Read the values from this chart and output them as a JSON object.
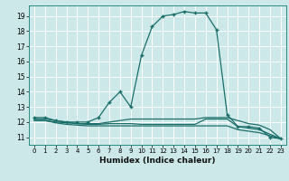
{
  "xlabel": "Humidex (Indice chaleur)",
  "bg_color": "#cce8e8",
  "grid_color": "#b0d4d4",
  "line_color": "#1a6e6a",
  "xlim": [
    -0.5,
    23.5
  ],
  "ylim": [
    10.5,
    19.7
  ],
  "xticks": [
    0,
    1,
    2,
    3,
    4,
    5,
    6,
    7,
    8,
    9,
    10,
    11,
    12,
    13,
    14,
    15,
    16,
    17,
    18,
    19,
    20,
    21,
    22,
    23
  ],
  "yticks": [
    11,
    12,
    13,
    14,
    15,
    16,
    17,
    18,
    19
  ],
  "main_x": [
    0,
    1,
    2,
    3,
    4,
    5,
    6,
    7,
    8,
    9,
    10,
    11,
    12,
    13,
    14,
    15,
    16,
    17,
    18,
    19,
    20,
    21,
    22,
    23
  ],
  "main_y": [
    12.3,
    12.3,
    12.1,
    12.0,
    12.0,
    12.0,
    12.3,
    13.3,
    14.0,
    13.0,
    16.4,
    18.3,
    19.0,
    19.1,
    19.3,
    19.2,
    19.2,
    18.1,
    12.5,
    11.7,
    11.7,
    11.6,
    11.0,
    10.9
  ],
  "line2_x": [
    0,
    1,
    2,
    3,
    4,
    5,
    6,
    7,
    8,
    9,
    10,
    11,
    12,
    13,
    14,
    15,
    16,
    17,
    18,
    19,
    20,
    21,
    22,
    23
  ],
  "line2_y": [
    12.1,
    12.1,
    12.0,
    11.95,
    11.9,
    11.85,
    11.85,
    11.9,
    11.9,
    11.9,
    11.85,
    11.85,
    11.85,
    11.85,
    11.85,
    11.85,
    12.2,
    12.2,
    12.2,
    11.7,
    11.6,
    11.5,
    11.2,
    10.9
  ],
  "line3_x": [
    0,
    1,
    2,
    3,
    4,
    5,
    6,
    7,
    8,
    9,
    10,
    11,
    12,
    13,
    14,
    15,
    16,
    17,
    18,
    19,
    20,
    21,
    22,
    23
  ],
  "line3_y": [
    12.1,
    12.1,
    11.95,
    11.85,
    11.8,
    11.75,
    11.75,
    11.75,
    11.75,
    11.75,
    11.75,
    11.75,
    11.75,
    11.75,
    11.75,
    11.75,
    11.75,
    11.75,
    11.75,
    11.5,
    11.4,
    11.3,
    11.1,
    10.9
  ],
  "line4_x": [
    0,
    1,
    2,
    3,
    4,
    5,
    6,
    7,
    8,
    9,
    10,
    11,
    12,
    13,
    14,
    15,
    16,
    17,
    18,
    19,
    20,
    21,
    22,
    23
  ],
  "line4_y": [
    12.2,
    12.2,
    12.1,
    12.0,
    11.9,
    11.9,
    11.9,
    12.0,
    12.1,
    12.2,
    12.2,
    12.2,
    12.2,
    12.2,
    12.2,
    12.2,
    12.3,
    12.3,
    12.3,
    12.1,
    11.9,
    11.8,
    11.5,
    10.9
  ]
}
